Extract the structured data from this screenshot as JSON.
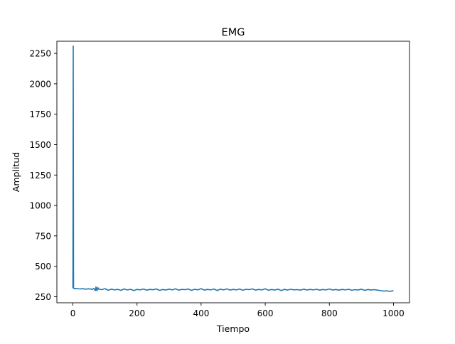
{
  "chart_data": {
    "type": "line",
    "title": "EMG",
    "xlabel": "Tiempo",
    "ylabel": "Amplitud",
    "xlim": [
      -50,
      1050
    ],
    "ylim": [
      200,
      2350
    ],
    "xticks": [
      0,
      200,
      400,
      600,
      800,
      1000
    ],
    "yticks": [
      250,
      500,
      750,
      1000,
      1250,
      1500,
      1750,
      2000,
      2250
    ],
    "grid": false,
    "series": [
      {
        "color": "#1f77b4",
        "x": [
          0,
          1,
          2,
          5,
          10,
          20,
          30,
          40,
          50,
          60,
          65,
          70,
          72,
          75,
          78,
          80,
          90,
          100,
          110,
          120,
          130,
          140,
          150,
          160,
          170,
          180,
          190,
          200,
          210,
          220,
          230,
          240,
          250,
          260,
          270,
          280,
          290,
          300,
          310,
          320,
          330,
          340,
          350,
          360,
          370,
          380,
          390,
          400,
          410,
          420,
          430,
          440,
          450,
          460,
          470,
          480,
          490,
          500,
          510,
          520,
          530,
          540,
          550,
          560,
          570,
          580,
          590,
          600,
          610,
          620,
          630,
          640,
          650,
          660,
          670,
          680,
          690,
          700,
          710,
          720,
          730,
          740,
          750,
          760,
          770,
          780,
          790,
          800,
          810,
          820,
          830,
          840,
          850,
          860,
          870,
          880,
          890,
          900,
          910,
          920,
          930,
          940,
          950,
          960,
          970,
          980,
          990,
          1000
        ],
        "y": [
          320,
          2310,
          320,
          315,
          318,
          314,
          316,
          312,
          315,
          310,
          318,
          300,
          330,
          298,
          325,
          312,
          308,
          316,
          303,
          312,
          306,
          310,
          302,
          314,
          305,
          311,
          300,
          310,
          306,
          313,
          304,
          310,
          307,
          314,
          302,
          309,
          305,
          312,
          306,
          315,
          304,
          310,
          308,
          313,
          302,
          311,
          306,
          316,
          304,
          310,
          306,
          313,
          301,
          312,
          306,
          314,
          305,
          310,
          306,
          313,
          303,
          311,
          308,
          314,
          304,
          310,
          306,
          315,
          303,
          309,
          305,
          312,
          300,
          310,
          305,
          311,
          306,
          308,
          304,
          312,
          305,
          310,
          306,
          311,
          304,
          309,
          306,
          313,
          305,
          309,
          304,
          310,
          306,
          311,
          303,
          308,
          305,
          312,
          302,
          309,
          305,
          308,
          304,
          300,
          296,
          298,
          294,
          300
        ]
      }
    ]
  }
}
